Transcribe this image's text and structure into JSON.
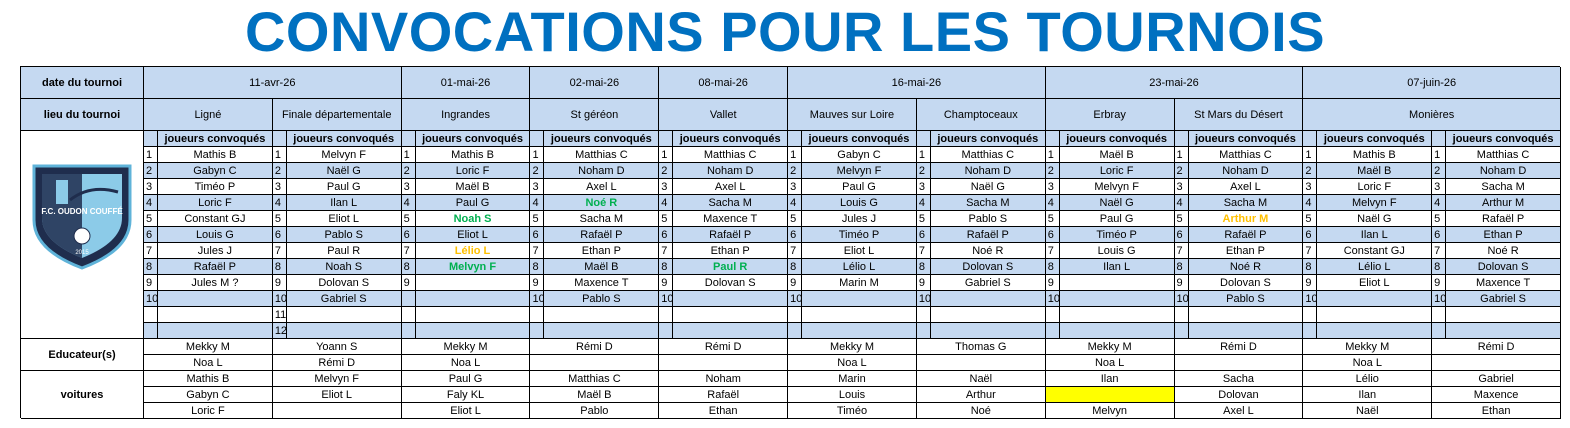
{
  "title": "CONVOCATIONS POUR LES TOURNOIS",
  "row_labels": {
    "date": "date du tournoi",
    "place": "lieu du tournoi",
    "educators": "Educateur(s)",
    "cars": "voitures"
  },
  "players_header": "joueurs convoqués",
  "logo": {
    "text": "F.C. OUDON COUFFÉ",
    "year": "2015"
  },
  "tournaments": [
    {
      "date": "11-avr-26",
      "venues": [
        {
          "place": "Ligné",
          "groups": [
            {
              "players": [
                {
                  "no": 1,
                  "name": "Mathis B"
                },
                {
                  "no": 2,
                  "name": "Gabyn C"
                },
                {
                  "no": 3,
                  "name": "Timéo P"
                },
                {
                  "no": 4,
                  "name": "Loric F"
                },
                {
                  "no": 5,
                  "name": "Constant GJ"
                },
                {
                  "no": 6,
                  "name": "Louis G"
                },
                {
                  "no": 7,
                  "name": "Jules J"
                },
                {
                  "no": 8,
                  "name": "Rafaël P"
                },
                {
                  "no": 9,
                  "name": "Jules M ?"
                },
                {
                  "no": 10
                }
              ],
              "educators": [
                "Mekky M",
                "Noa L"
              ],
              "cars": [
                "Mathis B",
                "Gabyn C",
                "Loric F"
              ]
            }
          ]
        },
        {
          "place": "Finale départementale",
          "groups": [
            {
              "players": [
                {
                  "no": 1,
                  "name": "Melvyn F"
                },
                {
                  "no": 2,
                  "name": "Naël G"
                },
                {
                  "no": 3,
                  "name": "Paul G"
                },
                {
                  "no": 4,
                  "name": "Ilan L"
                },
                {
                  "no": 5,
                  "name": "Eliot L"
                },
                {
                  "no": 6,
                  "name": "Pablo S"
                },
                {
                  "no": 7,
                  "name": "Paul R"
                },
                {
                  "no": 8,
                  "name": "Noah S"
                },
                {
                  "no": 9,
                  "name": "Dolovan S"
                },
                {
                  "no": 10,
                  "name": "Gabriel S"
                },
                {
                  "no": 11
                },
                {
                  "no": 12
                }
              ],
              "educators": [
                "Yoann S",
                "Rémi D"
              ],
              "cars": [
                "Melvyn F",
                "Eliot L"
              ]
            }
          ]
        }
      ]
    },
    {
      "date": "01-mai-26",
      "venues": [
        {
          "place": "Ingrandes",
          "groups": [
            {
              "players": [
                {
                  "no": 1,
                  "name": "Mathis B"
                },
                {
                  "no": 2,
                  "name": "Loric F"
                },
                {
                  "no": 3,
                  "name": "Maël B"
                },
                {
                  "no": 4,
                  "name": "Paul G"
                },
                {
                  "no": 5,
                  "name": "Noah S",
                  "color": "#00b050"
                },
                {
                  "no": 6,
                  "name": "Eliot L"
                },
                {
                  "no": 7,
                  "name": "Lélio L",
                  "color": "#ffc000"
                },
                {
                  "no": 8,
                  "name": "Melvyn F",
                  "color": "#00b050"
                },
                {
                  "no": 9
                }
              ],
              "educators": [
                "Mekky M",
                "Noa L"
              ],
              "cars": [
                "Paul G",
                "Faly KL",
                "Eliot L"
              ]
            }
          ]
        }
      ]
    },
    {
      "date": "02-mai-26",
      "venues": [
        {
          "place": "St géréon",
          "groups": [
            {
              "players": [
                {
                  "no": 1,
                  "name": "Matthias C"
                },
                {
                  "no": 2,
                  "name": "Noham D"
                },
                {
                  "no": 3,
                  "name": "Axel L"
                },
                {
                  "no": 4,
                  "name": "Noé R",
                  "color": "#00b050"
                },
                {
                  "no": 5,
                  "name": "Sacha M"
                },
                {
                  "no": 6,
                  "name": "Rafaël P"
                },
                {
                  "no": 7,
                  "name": "Ethan P"
                },
                {
                  "no": 8,
                  "name": "Maël B"
                },
                {
                  "no": 9,
                  "name": "Maxence T"
                },
                {
                  "no": 10,
                  "name": "Pablo S"
                }
              ],
              "educators": [
                "Rémi D"
              ],
              "cars": [
                "Matthias C",
                "Maël B",
                "Pablo"
              ]
            }
          ]
        }
      ]
    },
    {
      "date": "08-mai-26",
      "venues": [
        {
          "place": "Vallet",
          "groups": [
            {
              "players": [
                {
                  "no": 1,
                  "name": "Matthias C"
                },
                {
                  "no": 2,
                  "name": "Noham D"
                },
                {
                  "no": 3,
                  "name": "Axel L"
                },
                {
                  "no": 4,
                  "name": "Sacha M"
                },
                {
                  "no": 5,
                  "name": "Maxence T"
                },
                {
                  "no": 6,
                  "name": "Rafaël P"
                },
                {
                  "no": 7,
                  "name": "Ethan P"
                },
                {
                  "no": 8,
                  "name": "Paul R",
                  "color": "#00b050"
                },
                {
                  "no": 9,
                  "name": "Dolovan S"
                },
                {
                  "no": 10
                }
              ],
              "educators": [
                "Rémi D"
              ],
              "cars": [
                "Noham",
                "Rafaël",
                "Ethan"
              ]
            }
          ]
        }
      ]
    },
    {
      "date": "16-mai-26",
      "venues": [
        {
          "place": "Mauves sur Loire",
          "groups": [
            {
              "players": [
                {
                  "no": 1,
                  "name": "Gabyn C"
                },
                {
                  "no": 2,
                  "name": "Melvyn F"
                },
                {
                  "no": 3,
                  "name": "Paul G"
                },
                {
                  "no": 4,
                  "name": "Louis G"
                },
                {
                  "no": 5,
                  "name": "Jules J"
                },
                {
                  "no": 6,
                  "name": "Timéo P"
                },
                {
                  "no": 7,
                  "name": "Eliot L"
                },
                {
                  "no": 8,
                  "name": "Lélio L"
                },
                {
                  "no": 9,
                  "name": "Marin M"
                },
                {
                  "no": 10
                }
              ],
              "educators": [
                "Mekky M",
                "Noa L"
              ],
              "cars": [
                "Marin",
                "Louis",
                "Timéo"
              ]
            }
          ]
        },
        {
          "place": "Champtoceaux",
          "groups": [
            {
              "players": [
                {
                  "no": 1,
                  "name": "Matthias C"
                },
                {
                  "no": 2,
                  "name": "Noham D"
                },
                {
                  "no": 3,
                  "name": "Naël G"
                },
                {
                  "no": 4,
                  "name": "Sacha M"
                },
                {
                  "no": 5,
                  "name": "Pablo S"
                },
                {
                  "no": 6,
                  "name": "Rafaël P"
                },
                {
                  "no": 7,
                  "name": "Noé R"
                },
                {
                  "no": 8,
                  "name": "Dolovan S"
                },
                {
                  "no": 9,
                  "name": "Gabriel S"
                },
                {
                  "no": 10
                }
              ],
              "educators": [
                "Thomas G"
              ],
              "cars": [
                "Naël",
                "Arthur",
                "Noé"
              ]
            }
          ]
        }
      ]
    },
    {
      "date": "23-mai-26",
      "venues": [
        {
          "place": "Erbray",
          "groups": [
            {
              "players": [
                {
                  "no": 1,
                  "name": "Maël B"
                },
                {
                  "no": 2,
                  "name": "Loric F"
                },
                {
                  "no": 3,
                  "name": "Melvyn F"
                },
                {
                  "no": 4,
                  "name": "Naël G"
                },
                {
                  "no": 5,
                  "name": "Paul G"
                },
                {
                  "no": 6,
                  "name": "Timéo P"
                },
                {
                  "no": 7,
                  "name": "Louis G"
                },
                {
                  "no": 8,
                  "name": "Ilan L"
                },
                {
                  "no": 9
                },
                {
                  "no": 10
                }
              ],
              "educators": [
                "Mekky M",
                "Noa L"
              ],
              "cars": [
                "Ilan",
                {
                  "fill": "#ffff00"
                },
                "Melvyn"
              ]
            }
          ]
        },
        {
          "place": "St Mars du Désert",
          "groups": [
            {
              "players": [
                {
                  "no": 1,
                  "name": "Matthias C"
                },
                {
                  "no": 2,
                  "name": "Noham D"
                },
                {
                  "no": 3,
                  "name": "Axel L"
                },
                {
                  "no": 4,
                  "name": "Sacha M"
                },
                {
                  "no": 5,
                  "name": "Arthur M",
                  "color": "#ffc000"
                },
                {
                  "no": 6,
                  "name": "Rafaël P"
                },
                {
                  "no": 7,
                  "name": "Ethan P"
                },
                {
                  "no": 8,
                  "name": "Noé R"
                },
                {
                  "no": 9,
                  "name": "Dolovan S"
                },
                {
                  "no": 10,
                  "name": "Pablo S"
                }
              ],
              "educators": [
                "Rémi D"
              ],
              "cars": [
                "Sacha",
                "Dolovan",
                "Axel L"
              ]
            }
          ]
        }
      ]
    },
    {
      "date": "07-juin-26",
      "venues": [
        {
          "place": "Monières",
          "groups": [
            {
              "players": [
                {
                  "no": 1,
                  "name": "Mathis B"
                },
                {
                  "no": 2,
                  "name": "Maël B"
                },
                {
                  "no": 3,
                  "name": "Loric F"
                },
                {
                  "no": 4,
                  "name": "Melvyn F"
                },
                {
                  "no": 5,
                  "name": "Naël G"
                },
                {
                  "no": 6,
                  "name": "Ilan L"
                },
                {
                  "no": 7,
                  "name": "Constant GJ"
                },
                {
                  "no": 8,
                  "name": "Lélio L"
                },
                {
                  "no": 9,
                  "name": "Eliot L"
                },
                {
                  "no": 10
                }
              ],
              "educators": [
                "Mekky M",
                "Noa L"
              ],
              "cars": [
                "Lélio",
                "Ilan",
                "Naël"
              ]
            },
            {
              "players": [
                {
                  "no": 1,
                  "name": "Matthias C"
                },
                {
                  "no": 2,
                  "name": "Noham D"
                },
                {
                  "no": 3,
                  "name": "Sacha M"
                },
                {
                  "no": 4,
                  "name": "Arthur M"
                },
                {
                  "no": 5,
                  "name": "Rafaël P"
                },
                {
                  "no": 6,
                  "name": "Ethan P"
                },
                {
                  "no": 7,
                  "name": "Noé R"
                },
                {
                  "no": 8,
                  "name": "Dolovan S"
                },
                {
                  "no": 9,
                  "name": "Maxence T"
                },
                {
                  "no": 10,
                  "name": "Gabriel S"
                }
              ],
              "educators": [
                "Rémi D"
              ],
              "cars": [
                "Gabriel",
                "Maxence",
                "Ethan"
              ]
            }
          ]
        }
      ]
    }
  ]
}
